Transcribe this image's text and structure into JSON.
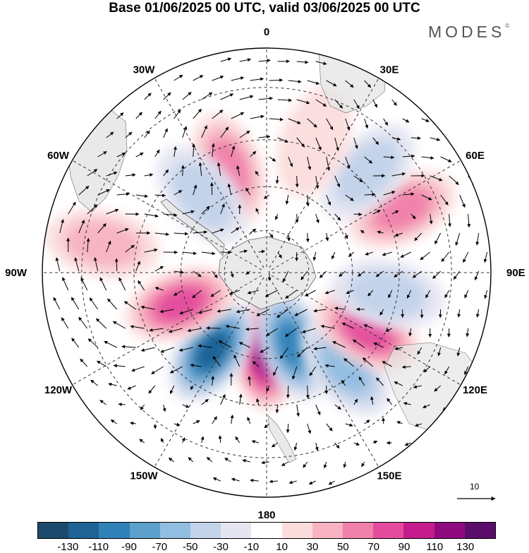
{
  "header": {
    "title": "Base 01/06/2025 00 UTC, valid 03/06/2025 00 UTC",
    "brand": "MODES",
    "brand_mark": "©"
  },
  "map": {
    "projection": "south-polar-stereographic",
    "longitude_labels": [
      "0",
      "30E",
      "60E",
      "90E",
      "120E",
      "150E",
      "180",
      "150W",
      "120W",
      "90W",
      "60W",
      "30W"
    ],
    "field": "geopotential height anomaly with wind vectors",
    "anomaly_centers": [
      {
        "lon": 180,
        "lat": -62,
        "value": 120
      },
      {
        "lon": -145,
        "lat": -57,
        "value": -120
      },
      {
        "lon": 160,
        "lat": -63,
        "value": -100
      },
      {
        "lon": 140,
        "lat": -48,
        "value": -70
      },
      {
        "lon": 120,
        "lat": -50,
        "value": 80
      },
      {
        "lon": 100,
        "lat": -48,
        "value": -50
      },
      {
        "lon": 65,
        "lat": -40,
        "value": 60
      },
      {
        "lon": 45,
        "lat": -42,
        "value": -50
      },
      {
        "lon": 20,
        "lat": -43,
        "value": 30
      },
      {
        "lon": -20,
        "lat": -52,
        "value": 60
      },
      {
        "lon": -40,
        "lat": -55,
        "value": -50
      },
      {
        "lon": -110,
        "lat": -58,
        "value": 90
      },
      {
        "lon": -80,
        "lat": -35,
        "value": 40
      }
    ]
  },
  "scale": {
    "label": "10"
  },
  "colorbar": {
    "colors": [
      "#1c4a6c",
      "#1f6294",
      "#2f82b8",
      "#5ea0cc",
      "#91bde0",
      "#c2d3ea",
      "#e4e5f1",
      "#ffffff",
      "#fbdcdc",
      "#f7b3c1",
      "#f081aa",
      "#e34c9c",
      "#c41c8c",
      "#8f0a7e",
      "#5b0d6c"
    ],
    "tick_labels": [
      "-130",
      "-110",
      "-90",
      "-70",
      "-50",
      "-30",
      "-10",
      "10",
      "30",
      "50",
      "70",
      "90",
      "110",
      "130"
    ]
  }
}
